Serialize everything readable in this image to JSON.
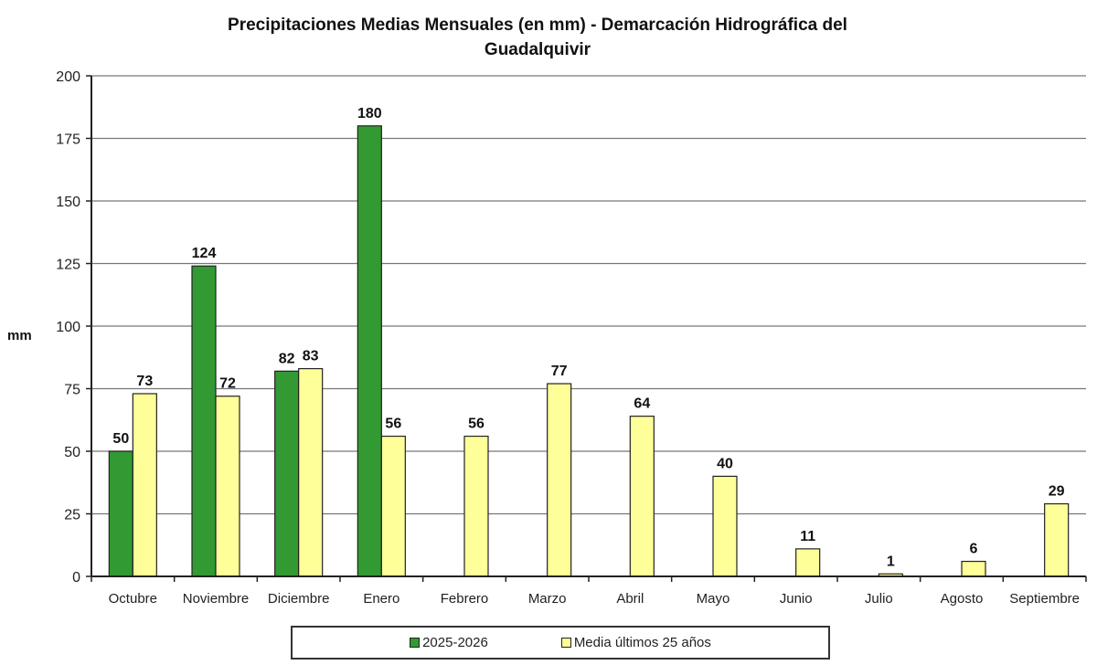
{
  "chart_data": {
    "type": "bar",
    "title": "Precipitaciones Medias Mensuales (en mm) - Demarcación Hidrográfica del Guadalquivir",
    "title_lines": [
      "Precipitaciones Medias Mensuales (en mm) - Demarcación Hidrográfica del",
      "Guadalquivir"
    ],
    "xlabel": "",
    "ylabel": "mm",
    "ylim": [
      0,
      200
    ],
    "yticks": [
      0,
      25,
      50,
      75,
      100,
      125,
      150,
      175,
      200
    ],
    "grid": true,
    "legend_placement": "bottom",
    "categories": [
      "Octubre",
      "Noviembre",
      "Diciembre",
      "Enero",
      "Febrero",
      "Marzo",
      "Abril",
      "Mayo",
      "Junio",
      "Julio",
      "Agosto",
      "Septiembre"
    ],
    "series": [
      {
        "name": "2025-2026",
        "color": "#339933",
        "values": [
          50,
          124,
          82,
          180,
          null,
          null,
          null,
          null,
          null,
          null,
          null,
          null
        ]
      },
      {
        "name": "Media últimos 25 años",
        "color": "#FFFF99",
        "values": [
          73,
          72,
          83,
          56,
          56,
          77,
          64,
          40,
          11,
          1,
          6,
          29
        ]
      }
    ]
  }
}
